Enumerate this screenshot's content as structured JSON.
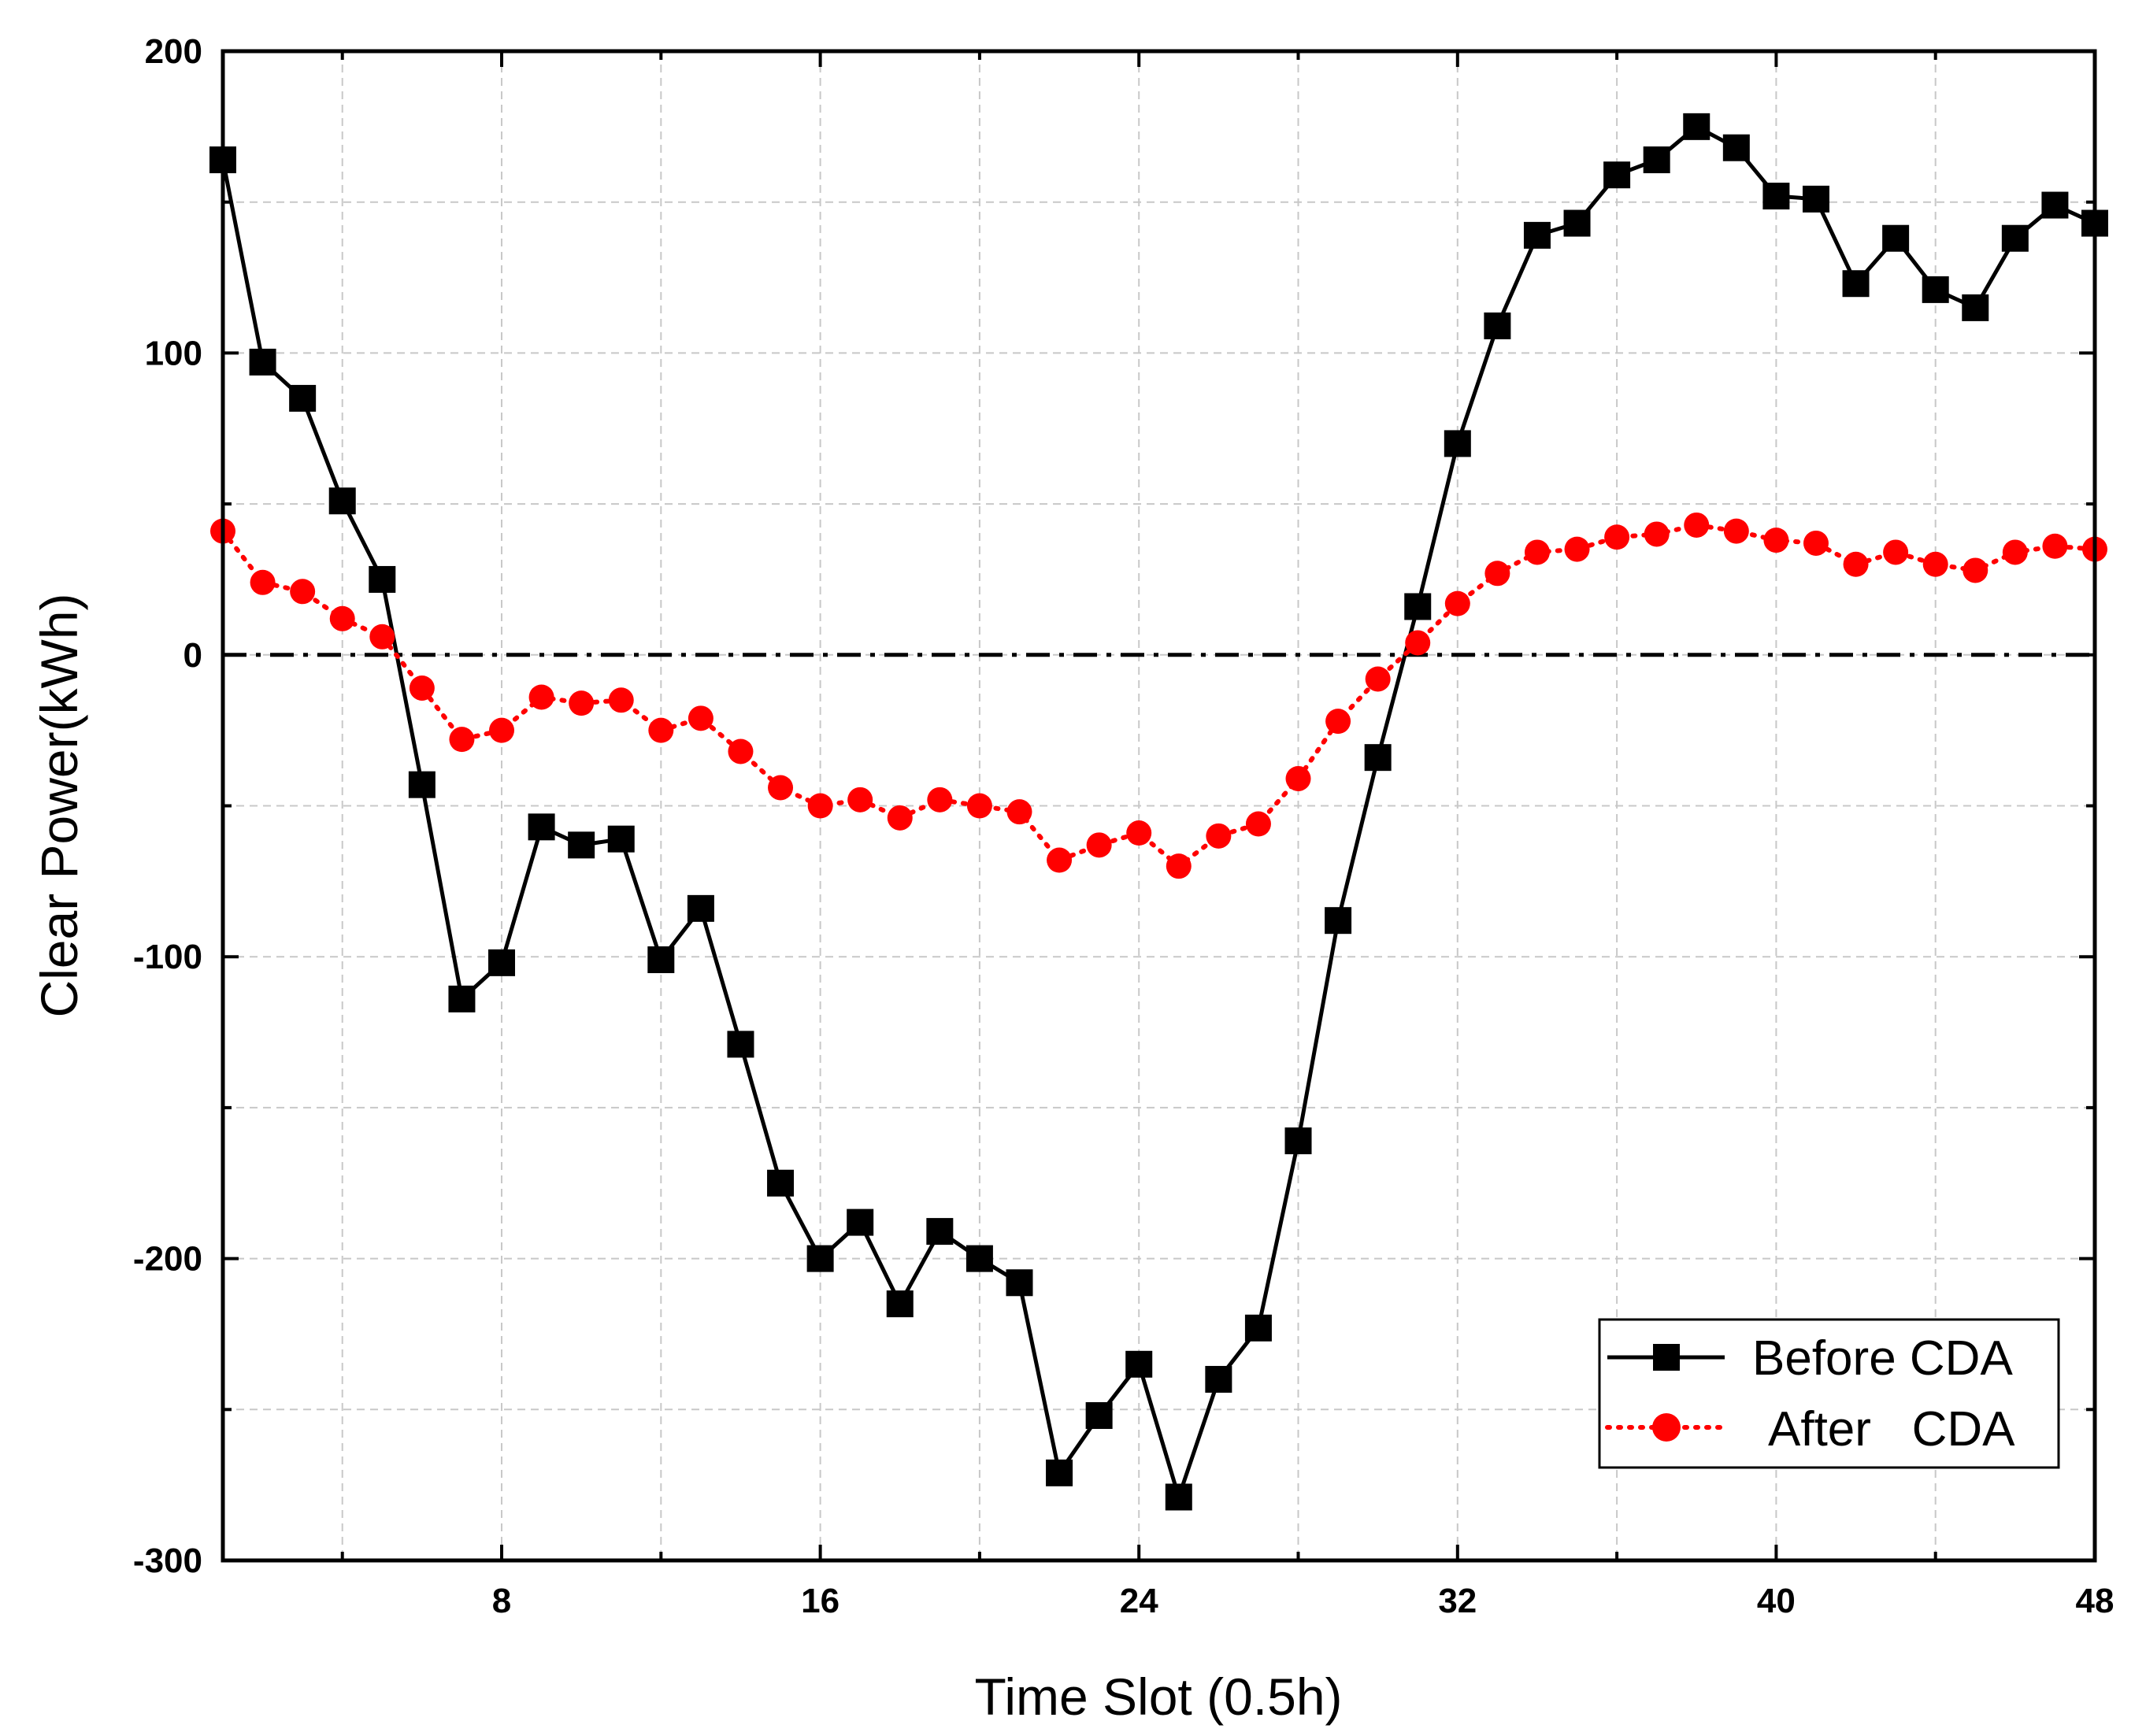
{
  "chart_data": {
    "type": "line",
    "title": "",
    "xlabel": "Time Slot (0.5h)",
    "ylabel": "Clear Power(kWh)",
    "xlim": [
      1,
      48
    ],
    "ylim": [
      -300,
      200
    ],
    "grid": true,
    "legend_position": "bottom-right",
    "x_ticks": [
      8,
      16,
      24,
      32,
      40,
      48
    ],
    "x_tick_labels": [
      "8",
      "16",
      "24",
      "32",
      "40",
      "48"
    ],
    "y_ticks": [
      -300,
      -200,
      -100,
      0,
      100,
      200
    ],
    "y_tick_labels": [
      "-300",
      "-200",
      "-100",
      "0",
      "100",
      "200"
    ],
    "reference_line": {
      "y": 0,
      "style": "dash-dot",
      "color": "#000000"
    },
    "x": [
      1,
      2,
      3,
      4,
      5,
      6,
      7,
      8,
      9,
      10,
      11,
      12,
      13,
      14,
      15,
      16,
      17,
      18,
      19,
      20,
      21,
      22,
      23,
      24,
      25,
      26,
      27,
      28,
      29,
      30,
      31,
      32,
      33,
      34,
      35,
      36,
      37,
      38,
      39,
      40,
      41,
      42,
      43,
      44,
      45,
      46,
      47,
      48
    ],
    "series": [
      {
        "name": "Before CDA",
        "label": "Before CDA",
        "color": "#000000",
        "line_style": "solid",
        "marker": "square",
        "values": [
          164,
          97,
          85,
          51,
          25,
          -43,
          -114,
          -102,
          -57,
          -63,
          -61,
          -101,
          -84,
          -129,
          -175,
          -200,
          -188,
          -215,
          -191,
          -200,
          -208,
          -271,
          -252,
          -235,
          -279,
          -240,
          -223,
          -161,
          -88,
          -34,
          16,
          70,
          109,
          139,
          143,
          159,
          164,
          175,
          168,
          152,
          151,
          123,
          138,
          121,
          115,
          138,
          149,
          143
        ]
      },
      {
        "name": "After CDA",
        "label": "After   CDA",
        "color": "#ff0000",
        "line_style": "dotted",
        "marker": "circle",
        "values": [
          41,
          24,
          21,
          12,
          6,
          -11,
          -28,
          -25,
          -14,
          -16,
          -15,
          -25,
          -21,
          -32,
          -44,
          -50,
          -48,
          -54,
          -48,
          -50,
          -52,
          -68,
          -63,
          -59,
          -70,
          -60,
          -56,
          -41,
          -22,
          -8,
          4,
          17,
          27,
          34,
          35,
          39,
          40,
          43,
          41,
          38,
          37,
          30,
          34,
          30,
          28,
          34,
          36,
          35
        ]
      }
    ]
  }
}
